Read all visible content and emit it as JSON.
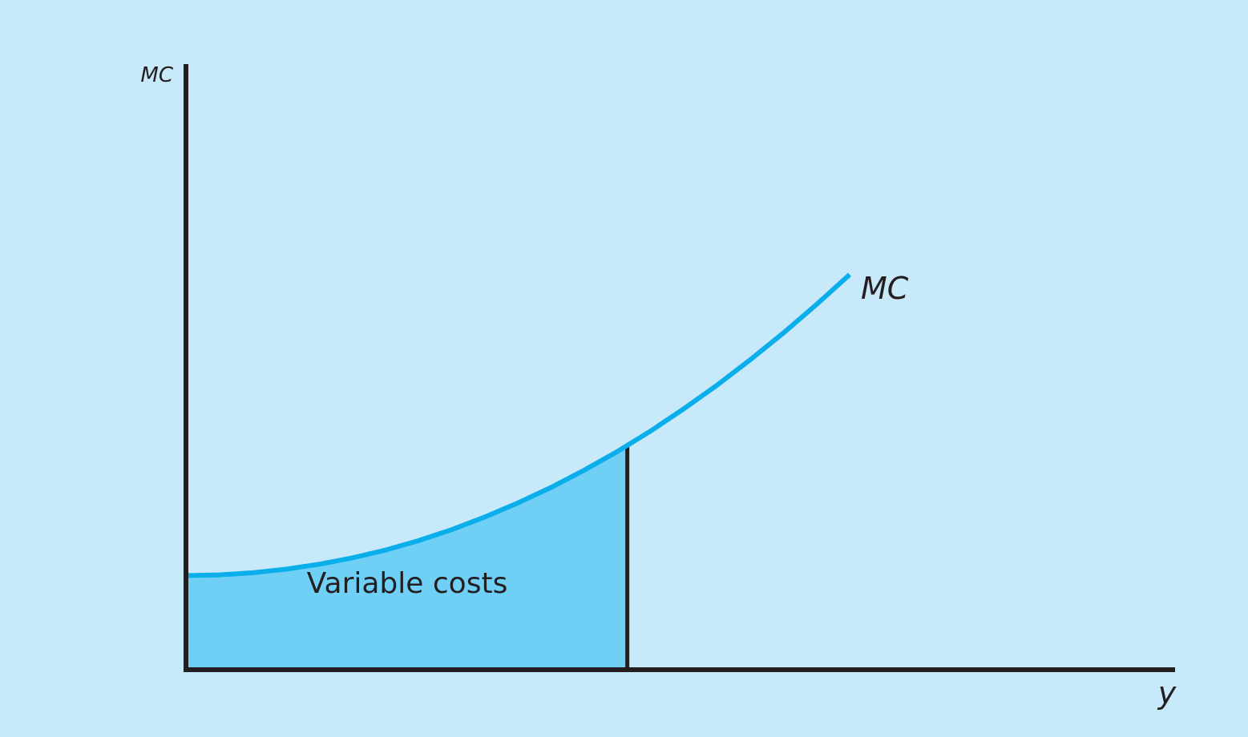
{
  "chart_data": {
    "type": "area",
    "title": "",
    "ylabel": "MC",
    "xlabel": "y",
    "grid": false,
    "curve": {
      "label": "MC",
      "x": [
        0,
        5,
        10,
        15,
        20,
        25,
        30,
        35,
        40,
        45,
        50,
        55,
        60,
        65,
        70,
        75,
        80,
        85,
        90,
        95,
        100
      ],
      "y": [
        26.7,
        26.9,
        27.5,
        28.5,
        29.9,
        31.7,
        33.9,
        36.6,
        39.7,
        43.3,
        47.3,
        51.7,
        56.6,
        61.9,
        67.7,
        74.0,
        80.7,
        87.9,
        95.5,
        103.6,
        112.1
      ]
    },
    "shaded_region": {
      "label": "Variable costs",
      "x_from": 0,
      "x_to": 66.5
    },
    "colors": {
      "background": "#c8e9f9",
      "curve": "#0aaeea",
      "fill": "#6fcff5",
      "axes": "#231f20"
    }
  }
}
